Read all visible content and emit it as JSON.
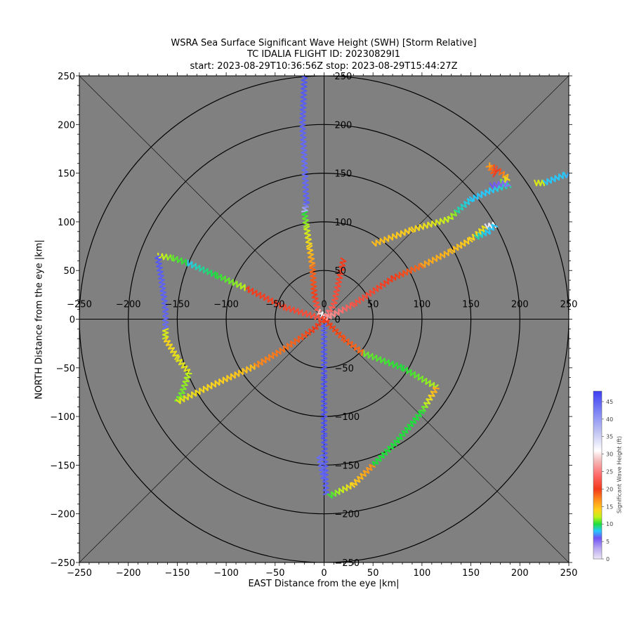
{
  "title": {
    "line1": "WSRA Sea Surface Significant Wave Height (SWH) [Storm Relative]",
    "line2": "TC IDALIA FLIGHT ID: 20230829I1",
    "line3": "start: 2023-08-29T10:36:56Z    stop: 2023-08-29T15:44:27Z"
  },
  "chart_data": {
    "type": "scatter",
    "xlabel": "EAST Distance from the eye |km|",
    "ylabel": "NORTH Distance from the eye |km|",
    "xlim": [
      -250,
      250
    ],
    "ylim": [
      -250,
      250
    ],
    "xticks": [
      -250,
      -200,
      -150,
      -100,
      -50,
      0,
      50,
      100,
      150,
      200,
      250
    ],
    "yticks": [
      -250,
      -200,
      -150,
      -100,
      -50,
      0,
      50,
      100,
      150,
      200,
      250
    ],
    "range_rings_km": [
      50,
      100,
      150,
      200,
      250
    ],
    "background_color": "#808080",
    "colorbar": {
      "label": "Significant Wave Height (ft)",
      "min": 0,
      "max": 48,
      "ticks": [
        0,
        5,
        10,
        15,
        20,
        25,
        30,
        35,
        40,
        45
      ],
      "stops": [
        {
          "v": 0,
          "color": "#ece6f5"
        },
        {
          "v": 3,
          "color": "#b9a8f0"
        },
        {
          "v": 6,
          "color": "#6f52f5"
        },
        {
          "v": 8,
          "color": "#27c8ff"
        },
        {
          "v": 10,
          "color": "#1ddf3a"
        },
        {
          "v": 12,
          "color": "#bff21a"
        },
        {
          "v": 14,
          "color": "#ffd21a"
        },
        {
          "v": 17,
          "color": "#ff8a1a"
        },
        {
          "v": 20,
          "color": "#f23a1a"
        },
        {
          "v": 24,
          "color": "#ff6a6a"
        },
        {
          "v": 28,
          "color": "#f4b8b8"
        },
        {
          "v": 31,
          "color": "#ffffff"
        },
        {
          "v": 36,
          "color": "#c5c8f2"
        },
        {
          "v": 42,
          "color": "#7f86f5"
        },
        {
          "v": 48,
          "color": "#3f3ff2"
        }
      ]
    },
    "tracks": [
      {
        "points": [
          [
            -20,
            252
          ],
          [
            -22,
            200
          ],
          [
            -20,
            160
          ],
          [
            -18,
            120
          ],
          [
            -20,
            110
          ]
        ],
        "swh": [
          46,
          45,
          44,
          45,
          36
        ]
      },
      {
        "points": [
          [
            -20,
            110
          ],
          [
            -18,
            95
          ],
          [
            -15,
            75
          ],
          [
            -12,
            55
          ]
        ],
        "swh": [
          10,
          12,
          14,
          17
        ]
      },
      {
        "points": [
          [
            -12,
            55
          ],
          [
            -10,
            25
          ],
          [
            -6,
            8
          ]
        ],
        "swh": [
          18,
          20,
          23
        ]
      },
      {
        "points": [
          [
            -6,
            8
          ],
          [
            -3,
            5
          ],
          [
            0,
            3
          ]
        ],
        "swh": [
          28,
          31,
          33
        ]
      },
      {
        "points": [
          [
            0,
            0
          ],
          [
            10,
            15
          ],
          [
            20,
            62
          ]
        ],
        "swh": [
          26,
          22,
          20
        ]
      },
      {
        "points": [
          [
            0,
            0
          ],
          [
            30,
            15
          ],
          [
            70,
            42
          ],
          [
            100,
            55
          ]
        ],
        "swh": [
          27,
          22,
          20,
          18
        ]
      },
      {
        "points": [
          [
            100,
            55
          ],
          [
            130,
            70
          ],
          [
            150,
            82
          ],
          [
            165,
            95
          ]
        ],
        "swh": [
          16,
          15,
          14,
          13
        ]
      },
      {
        "points": [
          [
            165,
            95
          ],
          [
            175,
            97
          ]
        ],
        "swh": [
          34,
          30
        ]
      },
      {
        "points": [
          [
            175,
            97
          ],
          [
            168,
            90
          ],
          [
            155,
            84
          ]
        ],
        "swh": [
          8,
          8,
          9
        ]
      },
      {
        "points": [
          [
            50,
            77
          ],
          [
            90,
            92
          ],
          [
            128,
            103
          ],
          [
            135,
            110
          ]
        ],
        "swh": [
          15,
          14,
          12,
          11
        ]
      },
      {
        "points": [
          [
            135,
            110
          ],
          [
            150,
            123
          ],
          [
            170,
            132
          ],
          [
            190,
            138
          ]
        ],
        "swh": [
          9,
          8,
          8,
          9
        ]
      },
      {
        "points": [
          [
            175,
            148
          ],
          [
            168,
            158
          ],
          [
            175,
            155
          ],
          [
            188,
            145
          ],
          [
            180,
            140
          ]
        ],
        "swh": [
          20,
          16,
          21,
          14,
          10
        ]
      },
      {
        "points": [
          [
            170,
            137
          ],
          [
            185,
            140
          ],
          [
            188,
            136
          ]
        ],
        "swh": [
          6,
          5,
          5
        ]
      },
      {
        "points": [
          [
            215,
            140
          ],
          [
            225,
            140
          ]
        ],
        "swh": [
          13,
          12
        ]
      },
      {
        "points": [
          [
            225,
            140
          ],
          [
            245,
            148
          ],
          [
            250,
            148
          ]
        ],
        "swh": [
          8,
          8,
          7
        ]
      },
      {
        "points": [
          [
            0,
            0
          ],
          [
            -40,
            12
          ],
          [
            -80,
            32
          ]
        ],
        "swh": [
          22,
          21,
          20
        ]
      },
      {
        "points": [
          [
            -80,
            32
          ],
          [
            -110,
            45
          ],
          [
            -140,
            58
          ]
        ],
        "swh": [
          12,
          10,
          8
        ]
      },
      {
        "points": [
          [
            -140,
            58
          ],
          [
            -155,
            63
          ],
          [
            -170,
            65
          ]
        ],
        "swh": [
          10,
          11,
          13
        ]
      },
      {
        "points": [
          [
            -170,
            65
          ],
          [
            -166,
            40
          ],
          [
            -162,
            10
          ],
          [
            -162,
            -10
          ]
        ],
        "swh": [
          46,
          45,
          45,
          44
        ]
      },
      {
        "points": [
          [
            -162,
            -10
          ],
          [
            -162,
            -20
          ]
        ],
        "swh": [
          13,
          12
        ]
      },
      {
        "points": [
          [
            -162,
            -20
          ],
          [
            -150,
            -40
          ],
          [
            -138,
            -55
          ]
        ],
        "swh": [
          14,
          13,
          13
        ]
      },
      {
        "points": [
          [
            -138,
            -55
          ],
          [
            -145,
            -75
          ],
          [
            -150,
            -85
          ]
        ],
        "swh": [
          12,
          11,
          11
        ]
      },
      {
        "points": [
          [
            -150,
            -85
          ],
          [
            -110,
            -66
          ],
          [
            -70,
            -48
          ]
        ],
        "swh": [
          13,
          14,
          15
        ]
      },
      {
        "points": [
          [
            -70,
            -48
          ],
          [
            -40,
            -30
          ],
          [
            -10,
            -10
          ],
          [
            0,
            0
          ]
        ],
        "swh": [
          17,
          18,
          20,
          21
        ]
      },
      {
        "points": [
          [
            0,
            0
          ],
          [
            20,
            -20
          ],
          [
            40,
            -35
          ]
        ],
        "swh": [
          20,
          19,
          18
        ]
      },
      {
        "points": [
          [
            40,
            -35
          ],
          [
            80,
            -50
          ],
          [
            115,
            -70
          ]
        ],
        "swh": [
          11,
          10,
          12
        ]
      },
      {
        "points": [
          [
            115,
            -70
          ],
          [
            100,
            -95
          ],
          [
            75,
            -125
          ],
          [
            50,
            -150
          ]
        ],
        "swh": [
          16,
          10,
          10,
          10
        ]
      },
      {
        "points": [
          [
            50,
            -150
          ],
          [
            30,
            -170
          ],
          [
            5,
            -182
          ]
        ],
        "swh": [
          17,
          14,
          10
        ]
      },
      {
        "points": [
          [
            0,
            -5
          ],
          [
            0,
            -60
          ],
          [
            0,
            -120
          ],
          [
            2,
            -180
          ]
        ],
        "swh": [
          45,
          46,
          46,
          45
        ]
      },
      {
        "points": [
          [
            -5,
            -140
          ],
          [
            0,
            -165
          ]
        ],
        "swh": [
          44,
          45
        ]
      }
    ]
  }
}
